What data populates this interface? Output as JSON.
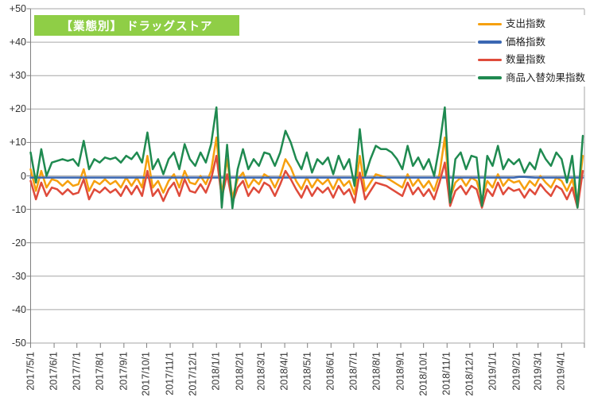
{
  "title": {
    "text": "【業態別】 ドラッグストア",
    "bg_color": "#8FCE46",
    "text_color": "#FFFFFF"
  },
  "palette": {
    "grid": "#A6A6A6",
    "axis": "#7F7F7F",
    "tick_label": "#333333",
    "background": "#FFFFFF"
  },
  "chart_data": {
    "type": "line",
    "title": "【業態別】 ドラッグストア",
    "ylim": [
      -50,
      50
    ],
    "grid": true,
    "legend_position": "top-right",
    "y_tick_labels": [
      "+50",
      "+40",
      "+30",
      "+20",
      "+10",
      "0",
      "-10",
      "-20",
      "-30",
      "-40",
      "-50"
    ],
    "x_unit": "week",
    "x_ticks": [
      {
        "label": "2017/5/1",
        "day": 0
      },
      {
        "label": "2017/6/1",
        "day": 31
      },
      {
        "label": "2017/7/1",
        "day": 61
      },
      {
        "label": "2017/8/1",
        "day": 92
      },
      {
        "label": "2017/9/1",
        "day": 123
      },
      {
        "label": "2017/10/1",
        "day": 153
      },
      {
        "label": "2017/11/1",
        "day": 184
      },
      {
        "label": "2017/12/1",
        "day": 214
      },
      {
        "label": "2018/1/1",
        "day": 245
      },
      {
        "label": "2018/2/1",
        "day": 276
      },
      {
        "label": "2018/3/1",
        "day": 304
      },
      {
        "label": "2018/4/1",
        "day": 335
      },
      {
        "label": "2018/5/1",
        "day": 365
      },
      {
        "label": "2018/6/1",
        "day": 396
      },
      {
        "label": "2018/7/1",
        "day": 426
      },
      {
        "label": "2018/8/1",
        "day": 457
      },
      {
        "label": "2018/9/1",
        "day": 488
      },
      {
        "label": "2018/10/1",
        "day": 518
      },
      {
        "label": "2018/11/1",
        "day": 549
      },
      {
        "label": "2018/12/1",
        "day": 579
      },
      {
        "label": "2019/1/1",
        "day": 610
      },
      {
        "label": "2019/2/1",
        "day": 641
      },
      {
        "label": "2019/3/1",
        "day": 669
      },
      {
        "label": "2019/4/1",
        "day": 700
      },
      {
        "label": "",
        "day": 730
      }
    ],
    "series": [
      {
        "name": "支出指数",
        "color": "#F6A00F",
        "values": [
          2,
          -4.5,
          1.5,
          -3.5,
          -1,
          -1.5,
          -3,
          -1.5,
          -3,
          -2.5,
          2,
          -4.5,
          -1.5,
          -2.5,
          -1,
          -2.5,
          -1.5,
          -3.5,
          -0.5,
          -3,
          -0.5,
          -3.5,
          6,
          -3.5,
          -1.5,
          -5,
          -1.5,
          0.5,
          -3.5,
          1.5,
          -2,
          -2.5,
          0,
          -2.5,
          1.5,
          11.5,
          -5.5,
          5,
          -6.5,
          -1,
          1,
          -3.5,
          -1,
          -2.5,
          0.5,
          -0.5,
          -3.5,
          0,
          5,
          2.5,
          -1.5,
          -4,
          -0.5,
          -3.5,
          -1,
          -2.5,
          -1,
          -4,
          -0.5,
          -3,
          -1.5,
          -5.5,
          6,
          -4.5,
          -2,
          0.5,
          0,
          -0.5,
          -1.5,
          -2.5,
          -3.5,
          0.5,
          -3,
          -1,
          -3.5,
          -1.5,
          -4.5,
          0.5,
          11.5,
          -6.5,
          -2,
          -0.5,
          -3,
          -0.5,
          -1.5,
          -7,
          -1.5,
          -3.5,
          0.5,
          -3,
          -1,
          -2,
          -1.5,
          -4,
          -1.5,
          -3,
          0,
          -2,
          -3.5,
          -0.5,
          -1.5,
          -4.5,
          -1,
          -7.5,
          6
        ]
      },
      {
        "name": "価格指数",
        "color": "#3A67B2",
        "values": [
          -0.5,
          -0.5,
          -0.5,
          -0.5,
          -0.5,
          -0.5,
          -0.5,
          -0.5,
          -0.5,
          -0.5,
          -0.5,
          -0.5,
          -0.5,
          -0.5,
          -0.5,
          -0.5,
          -0.5,
          -0.5,
          -0.5,
          -0.5,
          -0.5,
          -0.5,
          -0.5,
          -0.5,
          -0.5,
          -0.5,
          -0.5,
          -0.5,
          -0.5,
          -0.5,
          -0.5,
          -0.5,
          -0.5,
          -0.5,
          -0.5,
          -0.5,
          -0.5,
          -0.5,
          -0.5,
          -0.5,
          -0.5,
          -0.5,
          -0.5,
          -0.5,
          -0.5,
          -0.5,
          -0.5,
          -0.5,
          -0.5,
          -0.5,
          -0.5,
          -0.5,
          -0.5,
          -0.5,
          -0.5,
          -0.5,
          -0.5,
          -0.5,
          -0.5,
          -0.5,
          -0.5,
          -0.5,
          -0.5,
          -0.5,
          -0.5,
          -0.5,
          -0.5,
          -0.5,
          -0.5,
          -0.5,
          -0.5,
          -0.5,
          -0.5,
          -0.5,
          -0.5,
          -0.5,
          -0.5,
          -0.5,
          -0.5,
          -0.5,
          -0.5,
          -0.5,
          -0.5,
          -0.5,
          -0.5,
          -0.5,
          -0.5,
          -0.5,
          -0.5,
          -0.5,
          -0.5,
          -0.5,
          -0.3,
          -0.3,
          -0.4,
          -0.5,
          -0.5,
          -0.5,
          -0.5,
          -0.5,
          -0.5,
          -0.5,
          -0.5,
          -0.5,
          -0.5
        ]
      },
      {
        "name": "数量指数",
        "color": "#DF4B3B",
        "values": [
          -1.5,
          -7,
          -2,
          -6,
          -3.5,
          -4,
          -5.5,
          -4,
          -5.5,
          -5,
          -1,
          -7,
          -4,
          -5,
          -3.5,
          -5,
          -4,
          -6,
          -3,
          -5.5,
          -3,
          -6,
          1.5,
          -6,
          -4,
          -7.5,
          -4,
          -2,
          -6,
          -1,
          -4.5,
          -5,
          -2.5,
          -5,
          -1,
          6,
          -6.5,
          0.5,
          -8,
          -3.5,
          -1.5,
          -6,
          -3.5,
          -5,
          -2,
          -3,
          -6,
          -2.5,
          1.5,
          -1,
          -4,
          -6.5,
          -3,
          -6,
          -3.5,
          -5,
          -3.5,
          -6.5,
          -3,
          -5.5,
          -4,
          -8,
          1,
          -7,
          -4.5,
          -2,
          -2.5,
          -3,
          -4,
          -5,
          -6,
          -2,
          -5.5,
          -3.5,
          -6,
          -4,
          -7,
          -2,
          4,
          -9,
          -4.5,
          -3,
          -5.5,
          -3,
          -4,
          -9.5,
          -4,
          -6,
          -2,
          -5.5,
          -3.5,
          -4.5,
          -4,
          -6.5,
          -4,
          -5.5,
          -2.5,
          -4.5,
          -6,
          -3,
          -4,
          -7,
          -3.5,
          -9.5,
          1.5
        ]
      },
      {
        "name": "商品入替効果指数",
        "color": "#1F8A50",
        "values": [
          7,
          -2,
          8,
          0,
          4,
          4.5,
          5,
          4.5,
          5,
          3,
          10.5,
          2,
          5,
          4,
          5.5,
          5,
          5.5,
          4,
          6,
          5,
          7,
          4,
          13,
          2,
          5,
          0.5,
          5,
          7,
          2,
          9.5,
          5,
          3,
          7,
          4,
          9.5,
          20.5,
          -9.5,
          9.3,
          -9.7,
          2,
          8,
          2,
          5,
          3,
          7,
          6.5,
          3,
          7,
          13.5,
          10,
          5,
          2,
          7,
          1,
          5,
          3.5,
          5.5,
          0.5,
          6,
          2,
          5,
          -3,
          14,
          0,
          5,
          9,
          8,
          8,
          7,
          5,
          2,
          9,
          3,
          5.5,
          2,
          5,
          0,
          9,
          20.5,
          -8,
          5,
          7,
          2,
          6,
          5.5,
          -9,
          6,
          3,
          9,
          2,
          5,
          3.5,
          5,
          1,
          4,
          2,
          8,
          5,
          3,
          7,
          5,
          -2,
          6,
          -9.5,
          12
        ]
      }
    ]
  }
}
